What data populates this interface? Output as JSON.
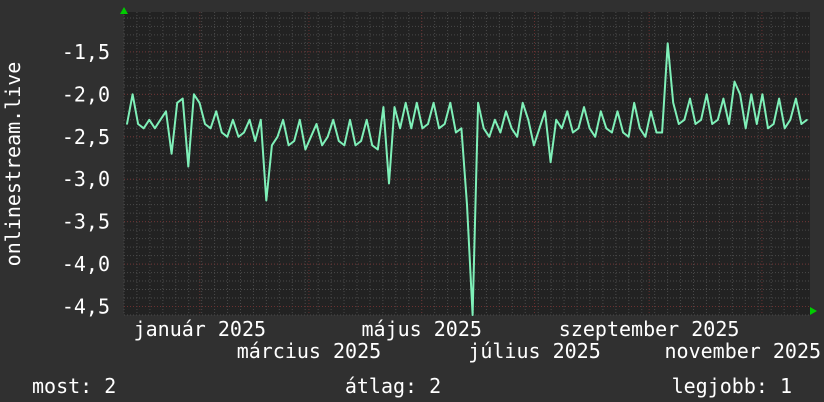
{
  "chart_data": {
    "type": "line",
    "ylabel": "onlinestream.live",
    "ylim": [
      -4.6,
      -1.03
    ],
    "xlim": [
      "2024-11-21",
      "2025-11-27"
    ],
    "y_ticks": [
      -1.5,
      -2.0,
      -2.5,
      -3.0,
      -3.5,
      -4.0,
      -4.5
    ],
    "y_tick_labels": [
      "-1,5",
      "-2,0",
      "-2,5",
      "-3,0",
      "-3,5",
      "-4,0",
      "-4,5"
    ],
    "x_ticks": [
      {
        "date": "2025-01-01",
        "label": "január 2025"
      },
      {
        "date": "2025-03-01",
        "label": "március 2025"
      },
      {
        "date": "2025-05-01",
        "label": "május 2025"
      },
      {
        "date": "2025-07-01",
        "label": "július 2025"
      },
      {
        "date": "2025-09-01",
        "label": "szeptember 2025"
      },
      {
        "date": "2025-11-01",
        "label": "november 2025"
      }
    ],
    "grid": true,
    "colors": {
      "line": "#7ff0b8",
      "background": "#303030",
      "plot": "#222222",
      "grid_minor": "#4a4a4a",
      "grid_major": "#6a3030",
      "arrow": "#00cc00"
    },
    "values": [
      -2.35,
      -2.0,
      -2.35,
      -2.4,
      -2.3,
      -2.4,
      -2.3,
      -2.2,
      -2.7,
      -2.1,
      -2.05,
      -2.85,
      -2.0,
      -2.1,
      -2.35,
      -2.4,
      -2.2,
      -2.45,
      -2.5,
      -2.3,
      -2.5,
      -2.45,
      -2.3,
      -2.55,
      -2.3,
      -3.25,
      -2.6,
      -2.5,
      -2.3,
      -2.6,
      -2.55,
      -2.3,
      -2.65,
      -2.5,
      -2.35,
      -2.6,
      -2.5,
      -2.3,
      -2.55,
      -2.6,
      -2.3,
      -2.6,
      -2.55,
      -2.3,
      -2.6,
      -2.65,
      -2.15,
      -3.05,
      -2.15,
      -2.4,
      -2.1,
      -2.4,
      -2.1,
      -2.4,
      -2.35,
      -2.1,
      -2.4,
      -2.35,
      -2.1,
      -2.45,
      -2.4,
      -3.3,
      -4.6,
      -2.1,
      -2.4,
      -2.5,
      -2.3,
      -2.45,
      -2.2,
      -2.4,
      -2.5,
      -2.1,
      -2.3,
      -2.6,
      -2.4,
      -2.2,
      -2.8,
      -2.3,
      -2.4,
      -2.2,
      -2.45,
      -2.4,
      -2.15,
      -2.4,
      -2.5,
      -2.2,
      -2.4,
      -2.45,
      -2.2,
      -2.45,
      -2.5,
      -2.1,
      -2.4,
      -2.5,
      -2.2,
      -2.45,
      -2.45,
      -1.4,
      -2.1,
      -2.35,
      -2.3,
      -2.05,
      -2.35,
      -2.3,
      -2.0,
      -2.35,
      -2.3,
      -2.05,
      -2.35,
      -1.85,
      -2.0,
      -2.4,
      -2.0,
      -2.35,
      -2.0,
      -2.4,
      -2.35,
      -2.05,
      -2.4,
      -2.3,
      -2.05,
      -2.35,
      -2.3
    ]
  },
  "legend": {
    "current": "most: 2",
    "average": "átlag: 2",
    "best": "legjobb: 1"
  }
}
